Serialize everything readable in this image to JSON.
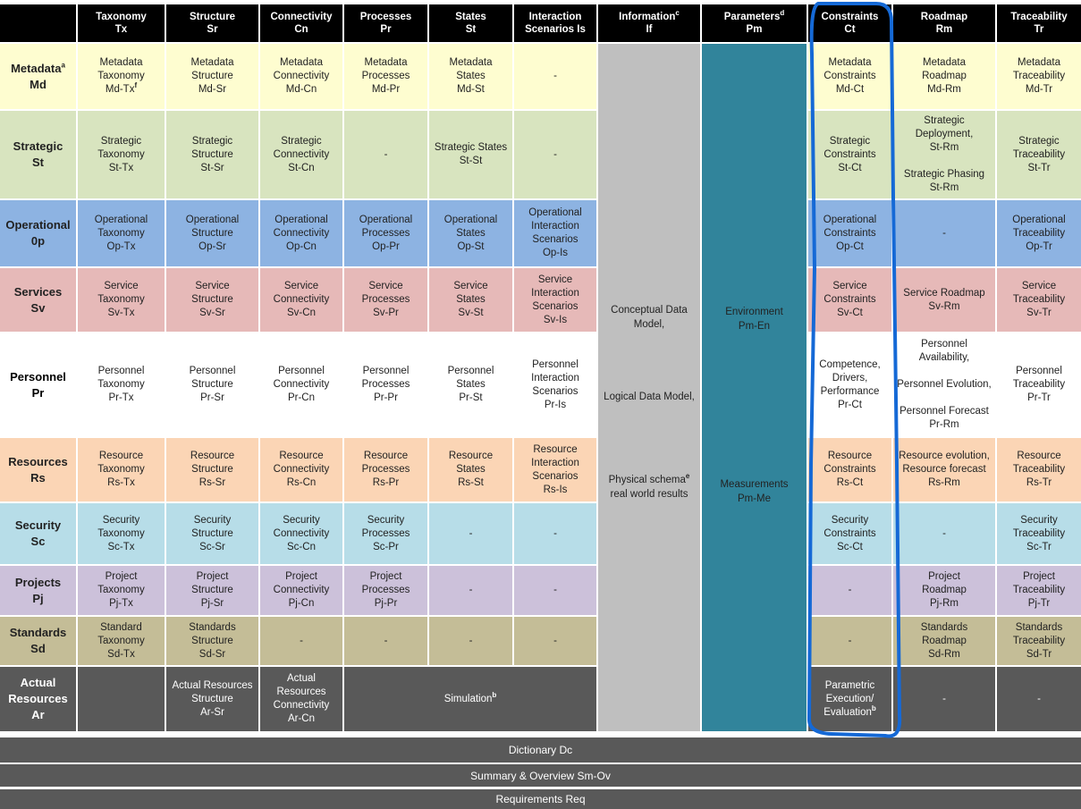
{
  "colors": {
    "header": "#000000",
    "information": "#bfbfbf",
    "parameters": "#31849b",
    "outline": "#1569d6",
    "actual": "#595959"
  },
  "columns": [
    {
      "name": "Taxonomy",
      "code": "Tx"
    },
    {
      "name": "Structure",
      "code": "Sr"
    },
    {
      "name": "Connectivity",
      "code": "Cn"
    },
    {
      "name": "Processes",
      "code": "Pr"
    },
    {
      "name": "States",
      "code": "St"
    },
    {
      "name": "Interaction\nScenarios Is",
      "code": ""
    },
    {
      "name": "Information",
      "sup": "c",
      "code": "If"
    },
    {
      "name": "Parameters",
      "sup": "d",
      "code": "Pm"
    },
    {
      "name": "Constraints",
      "code": "Ct"
    },
    {
      "name": "Roadmap",
      "code": "Rm"
    },
    {
      "name": "Traceability",
      "code": "Tr"
    }
  ],
  "information": {
    "texts": [
      "Conceptual Data\nModel,",
      "Logical Data Model,",
      "Physical schema",
      "real world results"
    ],
    "sup": "e"
  },
  "parameters": {
    "texts": [
      "Environment\nPm-En",
      "Measurements\nPm-Me"
    ]
  },
  "rows": [
    {
      "label": "Metadata",
      "sup": "a",
      "code": "Md",
      "color": "#fefdd0",
      "text_color": "#222",
      "cells": [
        {
          "text": "Metadata\nTaxonomy\nMd-Tx",
          "sup": "f"
        },
        {
          "text": "Metadata\nStructure\nMd-Sr"
        },
        {
          "text": "Metadata\nConnectivity\nMd-Cn"
        },
        {
          "text": "Metadata\nProcesses\nMd-Pr"
        },
        {
          "text": "Metadata\nStates\nMd-St"
        },
        {
          "text": "-"
        },
        {
          "text": "Metadata\nConstraints\nMd-Ct"
        },
        {
          "text": "Metadata\nRoadmap\nMd-Rm"
        },
        {
          "text": "Metadata\nTraceability\nMd-Tr"
        }
      ]
    },
    {
      "label": "Strategic",
      "code": "St",
      "color": "#d8e4bf",
      "text_color": "#222",
      "cells": [
        {
          "text": "Strategic\nTaxonomy\nSt-Tx"
        },
        {
          "text": "Strategic\nStructure\nSt-Sr"
        },
        {
          "text": "Strategic\nConnectivity\nSt-Cn"
        },
        {
          "text": "-"
        },
        {
          "text": "Strategic States\nSt-St"
        },
        {
          "text": "-"
        },
        {
          "text": "Strategic\nConstraints\nSt-Ct"
        },
        {
          "text": "Strategic\nDeployment,\nSt-Rm\n\nStrategic Phasing\nSt-Rm"
        },
        {
          "text": "Strategic\nTraceability\nSt-Tr"
        }
      ]
    },
    {
      "label": "Operational",
      "code": "0p",
      "color": "#8db3e2",
      "text_color": "#222",
      "cells": [
        {
          "text": "Operational\nTaxonomy\nOp-Tx"
        },
        {
          "text": "Operational\nStructure\nOp-Sr"
        },
        {
          "text": "Operational\nConnectivity\nOp-Cn"
        },
        {
          "text": "Operational\nProcesses\nOp-Pr"
        },
        {
          "text": "Operational\nStates\nOp-St"
        },
        {
          "text": "Operational\nInteraction\nScenarios\nOp-Is"
        },
        {
          "text": "Operational\nConstraints\nOp-Ct"
        },
        {
          "text": "-"
        },
        {
          "text": "Operational\nTraceability\nOp-Tr"
        }
      ]
    },
    {
      "label": "Services",
      "code": "Sv",
      "color": "#e6b9b8",
      "text_color": "#222",
      "cells": [
        {
          "text": "Service\nTaxonomy\nSv-Tx"
        },
        {
          "text": "Service\nStructure\nSv-Sr"
        },
        {
          "text": "Service\nConnectivity\nSv-Cn"
        },
        {
          "text": "Service\nProcesses\nSv-Pr"
        },
        {
          "text": "Service\nStates\nSv-St"
        },
        {
          "text": "Service\nInteraction\nScenarios\nSv-Is"
        },
        {
          "text": "Service\nConstraints\nSv-Ct"
        },
        {
          "text": "Service Roadmap\nSv-Rm"
        },
        {
          "text": "Service\nTraceability\nSv-Tr"
        }
      ]
    },
    {
      "label": "Personnel",
      "code": "Pr",
      "color": "#ffffff",
      "text_color": "#222",
      "cells": [
        {
          "text": "Personnel\nTaxonomy\nPr-Tx"
        },
        {
          "text": "Personnel\nStructure\nPr-Sr"
        },
        {
          "text": "Personnel\nConnectivity\nPr-Cn"
        },
        {
          "text": "Personnel\nProcesses\nPr-Pr"
        },
        {
          "text": "Personnel\nStates\nPr-St"
        },
        {
          "text": "Personnel\nInteraction\nScenarios\nPr-Is"
        },
        {
          "text": "Competence,\nDrivers,\nPerformance\nPr-Ct"
        },
        {
          "text": "Personnel\nAvailability,\n\nPersonnel Evolution,\n\nPersonnel Forecast\nPr-Rm"
        },
        {
          "text": "Personnel\nTraceability\nPr-Tr"
        }
      ]
    },
    {
      "label": "Resources",
      "code": "Rs",
      "color": "#fbd5b5",
      "text_color": "#222",
      "cells": [
        {
          "text": "Resource\nTaxonomy\nRs-Tx"
        },
        {
          "text": "Resource\nStructure\nRs-Sr"
        },
        {
          "text": "Resource\nConnectivity\nRs-Cn"
        },
        {
          "text": "Resource\nProcesses\nRs-Pr"
        },
        {
          "text": "Resource\nStates\nRs-St"
        },
        {
          "text": "Resource\nInteraction\nScenarios\nRs-Is"
        },
        {
          "text": "Resource\nConstraints\nRs-Ct"
        },
        {
          "text": "Resource evolution,\nResource forecast\nRs-Rm"
        },
        {
          "text": "Resource\nTraceability\nRs-Tr"
        }
      ]
    },
    {
      "label": "Security",
      "code": "Sc",
      "color": "#b7dde8",
      "text_color": "#222",
      "cells": [
        {
          "text": "Security\nTaxonomy\nSc-Tx"
        },
        {
          "text": "Security\nStructure\nSc-Sr"
        },
        {
          "text": "Security\nConnectivity\nSc-Cn"
        },
        {
          "text": "Security\nProcesses\nSc-Pr"
        },
        {
          "text": "-"
        },
        {
          "text": "-"
        },
        {
          "text": "Security\nConstraints\nSc-Ct"
        },
        {
          "text": "-"
        },
        {
          "text": "Security\nTraceability\nSc-Tr"
        }
      ]
    },
    {
      "label": "Projects",
      "code": "Pj",
      "color": "#ccc1da",
      "text_color": "#222",
      "cells": [
        {
          "text": "Project\nTaxonomy\nPj-Tx"
        },
        {
          "text": "Project\nStructure\nPj-Sr"
        },
        {
          "text": "Project\nConnectivity\nPj-Cn"
        },
        {
          "text": "Project\nProcesses\nPj-Pr"
        },
        {
          "text": "-"
        },
        {
          "text": "-"
        },
        {
          "text": "-"
        },
        {
          "text": "Project\nRoadmap\nPj-Rm"
        },
        {
          "text": "Project\nTraceability\nPj-Tr"
        }
      ]
    },
    {
      "label": "Standards",
      "code": "Sd",
      "color": "#c4bd97",
      "text_color": "#222",
      "cells": [
        {
          "text": "Standard\nTaxonomy\nSd-Tx"
        },
        {
          "text": "Standards\nStructure\nSd-Sr"
        },
        {
          "text": "-"
        },
        {
          "text": "-"
        },
        {
          "text": "-"
        },
        {
          "text": "-"
        },
        {
          "text": "-"
        },
        {
          "text": "Standards\nRoadmap\nSd-Rm"
        },
        {
          "text": "Standards\nTraceability\nSd-Tr"
        }
      ]
    },
    {
      "label": "Actual\nResources",
      "code": "Ar",
      "color": "#595959",
      "text_color": "#ffffff",
      "cells": [
        {
          "text": ""
        },
        {
          "text": "Actual Resources\nStructure\nAr-Sr"
        },
        {
          "text": "Actual\nResources\nConnectivity\nAr-Cn"
        },
        {
          "text": "Simulation",
          "sup": "b",
          "span": 3
        },
        {
          "text": "Parametric\nExecution/\nEvaluation",
          "sup": "b"
        },
        {
          "text": "-"
        },
        {
          "text": "-"
        }
      ]
    }
  ],
  "bars": [
    "Dictionary Dc",
    "Summary & Overview Sm-Ov",
    "Requirements Req"
  ]
}
